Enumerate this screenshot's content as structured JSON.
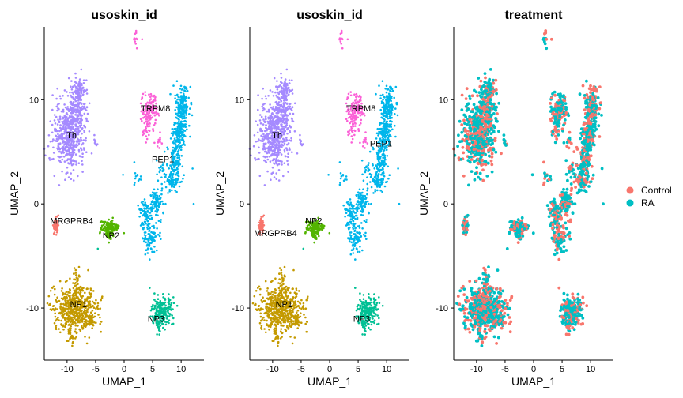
{
  "chart_data": [
    {
      "type": "scatter",
      "title": "usoskin_id",
      "xlabel": "UMAP_1",
      "ylabel": "UMAP_2",
      "xlim": [
        -14,
        14
      ],
      "ylim": [
        -15,
        17
      ],
      "xticks": [
        -10,
        -5,
        0,
        5,
        10
      ],
      "yticks": [
        -10,
        0,
        10
      ],
      "grid": false,
      "legend": "none",
      "colors": {
        "Th": "#a58aff",
        "TRPM8": "#fb61d7",
        "PEP1": "#00b6eb",
        "MRGPRB4": "#f8766d",
        "NP2": "#53b400",
        "NP1": "#c49a00",
        "NP3": "#00c094"
      },
      "clusters": [
        {
          "name": "Th",
          "x": -9.2,
          "y": 6.6,
          "label_x": -9.2,
          "label_y": 6.6
        },
        {
          "name": "TRPM8",
          "x": 4.8,
          "y": 9.2,
          "label_x": 5.5,
          "label_y": 9.2
        },
        {
          "name": "PEP1",
          "x": 8.0,
          "y": 4.5,
          "label_x": 6.8,
          "label_y": 4.3
        },
        {
          "name": "MRGPRB4",
          "x": -12.0,
          "y": -2.0,
          "label_x": -9.2,
          "label_y": -1.6
        },
        {
          "name": "NP2",
          "x": -2.6,
          "y": -2.5,
          "label_x": -2.3,
          "label_y": -3.0
        },
        {
          "name": "NP1",
          "x": -8.5,
          "y": -9.9,
          "label_x": -8.0,
          "label_y": -9.6
        },
        {
          "name": "NP3",
          "x": 6.6,
          "y": -10.5,
          "label_x": 5.6,
          "label_y": -11.0
        }
      ]
    },
    {
      "type": "scatter",
      "title": "usoskin_id",
      "xlabel": "UMAP_1",
      "ylabel": "UMAP_2",
      "xlim": [
        -14,
        14
      ],
      "ylim": [
        -15,
        17
      ],
      "xticks": [
        -10,
        -5,
        0,
        5,
        10
      ],
      "yticks": [
        -10,
        0,
        10
      ],
      "grid": false,
      "legend": "none",
      "colors": {
        "Th": "#a58aff",
        "TRPM8": "#fb61d7",
        "PEP1": "#00b6eb",
        "MRGPRB4": "#f8766d",
        "NP2": "#53b400",
        "NP1": "#c49a00",
        "NP3": "#00c094"
      },
      "clusters": [
        {
          "name": "Th",
          "x": -9.2,
          "y": 6.6,
          "label_x": -9.2,
          "label_y": 6.6
        },
        {
          "name": "TRPM8",
          "x": 4.8,
          "y": 9.2,
          "label_x": 5.5,
          "label_y": 9.2
        },
        {
          "name": "PEP1",
          "x": 8.0,
          "y": 5.8,
          "label_x": 9.0,
          "label_y": 5.8
        },
        {
          "name": "MRGPRB4",
          "x": -12.0,
          "y": -2.0,
          "label_x": -9.5,
          "label_y": -2.8
        },
        {
          "name": "NP2",
          "x": -2.6,
          "y": -2.5,
          "label_x": -2.8,
          "label_y": -1.6
        },
        {
          "name": "NP1",
          "x": -8.5,
          "y": -9.9,
          "label_x": -8.0,
          "label_y": -9.6
        },
        {
          "name": "NP3",
          "x": 6.6,
          "y": -10.5,
          "label_x": 5.6,
          "label_y": -11.0
        }
      ]
    },
    {
      "type": "scatter",
      "title": "treatment",
      "xlabel": "UMAP_1",
      "ylabel": "UMAP_2",
      "xlim": [
        -14,
        14
      ],
      "ylim": [
        -15,
        17
      ],
      "xticks": [
        -10,
        -5,
        0,
        5,
        10
      ],
      "yticks": [
        -10,
        0,
        10
      ],
      "grid": false,
      "legend": "right",
      "colors": {
        "Control": "#f8766d",
        "RA": "#00bfc4"
      },
      "legend_entries": [
        {
          "name": "Control",
          "color": "#f8766d"
        },
        {
          "name": "RA",
          "color": "#00bfc4"
        }
      ]
    }
  ]
}
